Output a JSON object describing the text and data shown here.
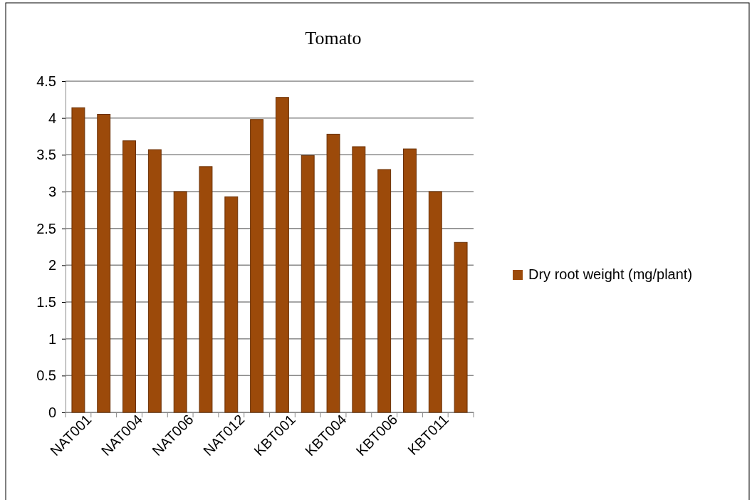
{
  "chart_data": {
    "type": "bar",
    "title": "Tomato",
    "categories": [
      "NAT001",
      null,
      "NAT004",
      null,
      "NAT006",
      null,
      "NAT012",
      null,
      "KBT001",
      null,
      "KBT004",
      null,
      "KBT006",
      null,
      "KBT011",
      null
    ],
    "series": [
      {
        "name": "Dry root weight (mg/plant)",
        "color": "#9c4a0a",
        "values": [
          4.14,
          4.05,
          3.69,
          3.57,
          3.0,
          3.34,
          2.93,
          3.98,
          4.28,
          3.49,
          3.78,
          3.61,
          3.3,
          3.58,
          3.0,
          2.31
        ]
      }
    ],
    "ylim": [
      0,
      4.5
    ],
    "yticks": [
      0,
      0.5,
      1,
      1.5,
      2,
      2.5,
      3,
      3.5,
      4,
      4.5
    ],
    "grid": "y",
    "legend": "right"
  }
}
